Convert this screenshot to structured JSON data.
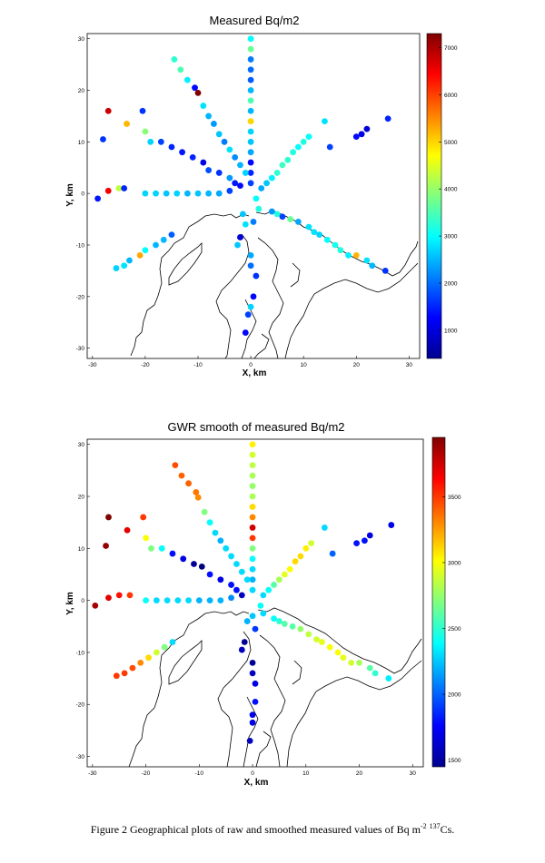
{
  "caption": {
    "prefix": "Figure 2 Geographical plots of raw and smoothed measured values of Bq m",
    "sup1": "-2",
    "mid": " ",
    "sup2": "137",
    "suffix": "Cs."
  },
  "chart_data": [
    {
      "type": "scatter",
      "title": "Measured Bq/m2",
      "xlabel": "X, km",
      "ylabel": "Y, km",
      "xlim": [
        -31,
        32
      ],
      "ylim": [
        -32,
        31
      ],
      "xticks": [
        -30,
        -20,
        -10,
        0,
        10,
        20,
        30
      ],
      "yticks": [
        -30,
        -20,
        -10,
        0,
        10,
        20,
        30
      ],
      "colorbar": {
        "min": 400,
        "max": 7300,
        "ticks": [
          1000,
          2000,
          3000,
          4000,
          5000,
          6000,
          7000
        ]
      },
      "points": [
        {
          "x": 0,
          "y": 30,
          "v": 3000
        },
        {
          "x": 0,
          "y": 28,
          "v": 3700
        },
        {
          "x": 0,
          "y": 26,
          "v": 2100
        },
        {
          "x": 0,
          "y": 24,
          "v": 2000
        },
        {
          "x": 0,
          "y": 22,
          "v": 1900
        },
        {
          "x": 0,
          "y": 20,
          "v": 2500
        },
        {
          "x": 0,
          "y": 18,
          "v": 3500
        },
        {
          "x": 0,
          "y": 16,
          "v": 2500
        },
        {
          "x": 0,
          "y": 14,
          "v": 5000
        },
        {
          "x": 0,
          "y": 12,
          "v": 2700
        },
        {
          "x": 0,
          "y": 10,
          "v": 2600
        },
        {
          "x": 0,
          "y": 8,
          "v": 2400
        },
        {
          "x": 0,
          "y": 6,
          "v": 1300
        },
        {
          "x": 0,
          "y": 4,
          "v": 1500
        },
        {
          "x": 0,
          "y": 2,
          "v": 1700
        },
        {
          "x": -14.5,
          "y": 26,
          "v": 3300
        },
        {
          "x": -13.3,
          "y": 24,
          "v": 3500
        },
        {
          "x": -12,
          "y": 22,
          "v": 2900
        },
        {
          "x": -10.6,
          "y": 20.5,
          "v": 1300
        },
        {
          "x": -10,
          "y": 19.5,
          "v": 7300
        },
        {
          "x": -9,
          "y": 17,
          "v": 2800
        },
        {
          "x": -8,
          "y": 15,
          "v": 2500
        },
        {
          "x": -7,
          "y": 13.5,
          "v": 2300
        },
        {
          "x": -6,
          "y": 11.5,
          "v": 2600
        },
        {
          "x": -5,
          "y": 10,
          "v": 2100
        },
        {
          "x": -4,
          "y": 8.5,
          "v": 2800
        },
        {
          "x": -3,
          "y": 7,
          "v": 2200
        },
        {
          "x": -2,
          "y": 5.5,
          "v": 2500
        },
        {
          "x": -1,
          "y": 4,
          "v": 2700
        },
        {
          "x": -27,
          "y": 16,
          "v": 6800
        },
        {
          "x": -23.5,
          "y": 13.5,
          "v": 5200
        },
        {
          "x": -20.5,
          "y": 16,
          "v": 1600
        },
        {
          "x": -28,
          "y": 10.5,
          "v": 1600
        },
        {
          "x": -20,
          "y": 12,
          "v": 3900
        },
        {
          "x": -19,
          "y": 10,
          "v": 2700
        },
        {
          "x": -17,
          "y": 10,
          "v": 1700
        },
        {
          "x": -15,
          "y": 9,
          "v": 1500
        },
        {
          "x": -13,
          "y": 8,
          "v": 1400
        },
        {
          "x": -11,
          "y": 7,
          "v": 1500
        },
        {
          "x": -9,
          "y": 6,
          "v": 1100
        },
        {
          "x": -8,
          "y": 4.5,
          "v": 1800
        },
        {
          "x": -6,
          "y": 4,
          "v": 1600
        },
        {
          "x": -4,
          "y": 3,
          "v": 2300
        },
        {
          "x": -3,
          "y": 2,
          "v": 1400
        },
        {
          "x": -2,
          "y": 1.5,
          "v": 1300
        },
        {
          "x": -29,
          "y": -1,
          "v": 1400
        },
        {
          "x": -27,
          "y": 0.5,
          "v": 6500
        },
        {
          "x": -25,
          "y": 1,
          "v": 4300
        },
        {
          "x": -24,
          "y": 1,
          "v": 1500
        },
        {
          "x": -20,
          "y": 0,
          "v": 2700
        },
        {
          "x": -18,
          "y": 0,
          "v": 2700
        },
        {
          "x": -16,
          "y": 0,
          "v": 2600
        },
        {
          "x": -14,
          "y": 0,
          "v": 2700
        },
        {
          "x": -12,
          "y": 0,
          "v": 2500
        },
        {
          "x": -10,
          "y": 0,
          "v": 2600
        },
        {
          "x": -8,
          "y": 0,
          "v": 2500
        },
        {
          "x": -6,
          "y": 0,
          "v": 2400
        },
        {
          "x": -4,
          "y": 0.5,
          "v": 1700
        },
        {
          "x": -25.5,
          "y": -14.5,
          "v": 2700
        },
        {
          "x": -24,
          "y": -14,
          "v": 2800
        },
        {
          "x": -23,
          "y": -13,
          "v": 2500
        },
        {
          "x": -21,
          "y": -12,
          "v": 5300
        },
        {
          "x": -20,
          "y": -11,
          "v": 3000
        },
        {
          "x": -18,
          "y": -10,
          "v": 2500
        },
        {
          "x": -16.5,
          "y": -9,
          "v": 2500
        },
        {
          "x": -15,
          "y": -8,
          "v": 1900
        },
        {
          "x": 14,
          "y": 14,
          "v": 2800
        },
        {
          "x": 11,
          "y": 11,
          "v": 3000
        },
        {
          "x": 10,
          "y": 10,
          "v": 3200
        },
        {
          "x": 9,
          "y": 9,
          "v": 3000
        },
        {
          "x": 8,
          "y": 8,
          "v": 3200
        },
        {
          "x": 7,
          "y": 6.5,
          "v": 3300
        },
        {
          "x": 6,
          "y": 5.5,
          "v": 3400
        },
        {
          "x": 5,
          "y": 4,
          "v": 3300
        },
        {
          "x": 4,
          "y": 3,
          "v": 2900
        },
        {
          "x": 3,
          "y": 2,
          "v": 2600
        },
        {
          "x": 2,
          "y": 1,
          "v": 2400
        },
        {
          "x": 26,
          "y": 14.5,
          "v": 1500
        },
        {
          "x": 22,
          "y": 12.5,
          "v": 1000
        },
        {
          "x": 21,
          "y": 11.5,
          "v": 1100
        },
        {
          "x": 20,
          "y": 11,
          "v": 1300
        },
        {
          "x": 15,
          "y": 9,
          "v": 1700
        },
        {
          "x": 1,
          "y": -1,
          "v": 3000
        },
        {
          "x": 1.5,
          "y": -3,
          "v": 3200
        },
        {
          "x": 4,
          "y": -3.5,
          "v": 2300
        },
        {
          "x": 5,
          "y": -4,
          "v": 3200
        },
        {
          "x": 6,
          "y": -4.5,
          "v": 1700
        },
        {
          "x": 7.5,
          "y": -5,
          "v": 3700
        },
        {
          "x": 9,
          "y": -5.5,
          "v": 2400
        },
        {
          "x": 11,
          "y": -6.5,
          "v": 2800
        },
        {
          "x": 12,
          "y": -7.5,
          "v": 2800
        },
        {
          "x": 13,
          "y": -8,
          "v": 2700
        },
        {
          "x": 14.5,
          "y": -9,
          "v": 3000
        },
        {
          "x": 16,
          "y": -10,
          "v": 3100
        },
        {
          "x": 17,
          "y": -11,
          "v": 3200
        },
        {
          "x": 18.5,
          "y": -12,
          "v": 2900
        },
        {
          "x": 20,
          "y": -12,
          "v": 5200
        },
        {
          "x": 22,
          "y": -13,
          "v": 2800
        },
        {
          "x": 23,
          "y": -14,
          "v": 2500
        },
        {
          "x": 25.5,
          "y": -15,
          "v": 1600
        },
        {
          "x": -1.5,
          "y": -4,
          "v": 2600
        },
        {
          "x": -1,
          "y": -6,
          "v": 2800
        },
        {
          "x": 0.5,
          "y": -5.5,
          "v": 2100
        },
        {
          "x": -2,
          "y": -8.5,
          "v": 1000
        },
        {
          "x": -2.5,
          "y": -10,
          "v": 2600
        },
        {
          "x": 0,
          "y": -12,
          "v": 2400
        },
        {
          "x": 0,
          "y": -14,
          "v": 2000
        },
        {
          "x": 1,
          "y": -16,
          "v": 1600
        },
        {
          "x": 0.5,
          "y": -20,
          "v": 1300
        },
        {
          "x": 0,
          "y": -22,
          "v": 2700
        },
        {
          "x": -0.5,
          "y": -23.5,
          "v": 1700
        },
        {
          "x": -1,
          "y": -27,
          "v": 1300
        }
      ]
    },
    {
      "type": "scatter",
      "title": "GWR smooth of measured Bq/m2",
      "xlabel": "X, km",
      "ylabel": "Y, km",
      "xlim": [
        -31,
        32
      ],
      "ylim": [
        -32,
        31
      ],
      "xticks": [
        -30,
        -20,
        -10,
        0,
        10,
        20,
        30
      ],
      "yticks": [
        -30,
        -20,
        -10,
        0,
        10,
        20,
        30
      ],
      "colorbar": {
        "min": 1450,
        "max": 3950,
        "ticks": [
          1500,
          2000,
          2500,
          3000,
          3500
        ]
      },
      "points": [
        {
          "x": 0,
          "y": 30,
          "v": 3050
        },
        {
          "x": 0,
          "y": 28,
          "v": 2900
        },
        {
          "x": 0,
          "y": 26,
          "v": 2850
        },
        {
          "x": 0,
          "y": 24,
          "v": 2800
        },
        {
          "x": 0,
          "y": 22,
          "v": 2750
        },
        {
          "x": 0,
          "y": 20,
          "v": 2800
        },
        {
          "x": 0,
          "y": 18,
          "v": 3100
        },
        {
          "x": 0,
          "y": 16,
          "v": 3300
        },
        {
          "x": 0,
          "y": 14,
          "v": 3750
        },
        {
          "x": 0,
          "y": 12,
          "v": 3500
        },
        {
          "x": 0,
          "y": 10,
          "v": 2700
        },
        {
          "x": 0,
          "y": 8,
          "v": 2400
        },
        {
          "x": 0,
          "y": 6,
          "v": 2300
        },
        {
          "x": 0,
          "y": 4,
          "v": 2200
        },
        {
          "x": 0,
          "y": 2,
          "v": 2300
        },
        {
          "x": -14.5,
          "y": 26,
          "v": 3450
        },
        {
          "x": -13.3,
          "y": 24,
          "v": 3400
        },
        {
          "x": -12,
          "y": 22.5,
          "v": 3400
        },
        {
          "x": -10.6,
          "y": 20.8,
          "v": 3350
        },
        {
          "x": -10.2,
          "y": 19.8,
          "v": 3300
        },
        {
          "x": -9,
          "y": 17,
          "v": 2700
        },
        {
          "x": -8,
          "y": 15,
          "v": 2400
        },
        {
          "x": -7,
          "y": 13,
          "v": 2300
        },
        {
          "x": -6,
          "y": 11.5,
          "v": 2200
        },
        {
          "x": -5,
          "y": 10,
          "v": 2300
        },
        {
          "x": -4,
          "y": 8.5,
          "v": 2300
        },
        {
          "x": -3,
          "y": 7,
          "v": 2300
        },
        {
          "x": -2,
          "y": 5.5,
          "v": 2300
        },
        {
          "x": -1,
          "y": 4,
          "v": 2300
        },
        {
          "x": -27,
          "y": 16,
          "v": 3950
        },
        {
          "x": -23.5,
          "y": 13.5,
          "v": 3700
        },
        {
          "x": -20.5,
          "y": 16,
          "v": 3500
        },
        {
          "x": -27.5,
          "y": 10.5,
          "v": 3900
        },
        {
          "x": -20,
          "y": 12,
          "v": 3000
        },
        {
          "x": -19,
          "y": 10,
          "v": 2700
        },
        {
          "x": -17,
          "y": 10,
          "v": 2400
        },
        {
          "x": -15,
          "y": 9,
          "v": 1800
        },
        {
          "x": -13,
          "y": 8,
          "v": 1700
        },
        {
          "x": -11,
          "y": 7,
          "v": 1500
        },
        {
          "x": -9.5,
          "y": 6.5,
          "v": 1450
        },
        {
          "x": -8,
          "y": 5,
          "v": 1800
        },
        {
          "x": -6,
          "y": 4,
          "v": 1700
        },
        {
          "x": -4,
          "y": 3,
          "v": 1800
        },
        {
          "x": -3,
          "y": 2,
          "v": 1800
        },
        {
          "x": -2,
          "y": 1,
          "v": 1600
        },
        {
          "x": -29.5,
          "y": -1,
          "v": 3850
        },
        {
          "x": -27,
          "y": 0.5,
          "v": 3700
        },
        {
          "x": -25,
          "y": 1,
          "v": 3600
        },
        {
          "x": -23,
          "y": 1,
          "v": 3500
        },
        {
          "x": -20,
          "y": 0,
          "v": 2400
        },
        {
          "x": -18,
          "y": 0,
          "v": 2300
        },
        {
          "x": -16,
          "y": 0,
          "v": 2300
        },
        {
          "x": -14,
          "y": 0,
          "v": 2300
        },
        {
          "x": -12,
          "y": 0,
          "v": 2300
        },
        {
          "x": -10,
          "y": 0,
          "v": 2200
        },
        {
          "x": -8,
          "y": 0,
          "v": 2200
        },
        {
          "x": -6,
          "y": 0,
          "v": 2200
        },
        {
          "x": -4,
          "y": 0.5,
          "v": 2100
        },
        {
          "x": -25.5,
          "y": -14.5,
          "v": 3500
        },
        {
          "x": -24,
          "y": -14,
          "v": 3500
        },
        {
          "x": -22.5,
          "y": -13,
          "v": 3450
        },
        {
          "x": -21,
          "y": -12,
          "v": 3300
        },
        {
          "x": -19.5,
          "y": -11,
          "v": 3100
        },
        {
          "x": -18,
          "y": -10,
          "v": 2900
        },
        {
          "x": -16.5,
          "y": -9,
          "v": 2700
        },
        {
          "x": -15,
          "y": -8,
          "v": 2300
        },
        {
          "x": 13.5,
          "y": 14,
          "v": 2300
        },
        {
          "x": 11,
          "y": 11,
          "v": 2900
        },
        {
          "x": 10,
          "y": 10,
          "v": 3050
        },
        {
          "x": 9,
          "y": 8.5,
          "v": 3100
        },
        {
          "x": 8,
          "y": 7.5,
          "v": 3100
        },
        {
          "x": 7,
          "y": 6,
          "v": 3000
        },
        {
          "x": 6,
          "y": 5,
          "v": 2950
        },
        {
          "x": 5,
          "y": 4,
          "v": 2800
        },
        {
          "x": 4,
          "y": 3,
          "v": 2600
        },
        {
          "x": 3,
          "y": 2,
          "v": 2400
        },
        {
          "x": 2,
          "y": 1,
          "v": 2300
        },
        {
          "x": 26,
          "y": 14.5,
          "v": 1700
        },
        {
          "x": 22,
          "y": 12.5,
          "v": 1700
        },
        {
          "x": 21,
          "y": 11.5,
          "v": 1800
        },
        {
          "x": 19.5,
          "y": 11,
          "v": 1800
        },
        {
          "x": 15,
          "y": 9,
          "v": 2000
        },
        {
          "x": 1.5,
          "y": -1,
          "v": 2400
        },
        {
          "x": 2,
          "y": -2.5,
          "v": 2300
        },
        {
          "x": 4,
          "y": -3.5,
          "v": 2400
        },
        {
          "x": 5,
          "y": -4,
          "v": 2500
        },
        {
          "x": 6,
          "y": -4.5,
          "v": 2600
        },
        {
          "x": 7.5,
          "y": -5,
          "v": 2600
        },
        {
          "x": 9,
          "y": -5.5,
          "v": 2750
        },
        {
          "x": 10.5,
          "y": -6.5,
          "v": 2850
        },
        {
          "x": 12,
          "y": -7.5,
          "v": 2900
        },
        {
          "x": 13,
          "y": -8,
          "v": 2950
        },
        {
          "x": 14.5,
          "y": -9,
          "v": 3000
        },
        {
          "x": 16,
          "y": -10,
          "v": 3000
        },
        {
          "x": 17,
          "y": -11,
          "v": 2950
        },
        {
          "x": 18.5,
          "y": -12,
          "v": 2900
        },
        {
          "x": 20,
          "y": -12,
          "v": 2800
        },
        {
          "x": 22,
          "y": -13,
          "v": 2600
        },
        {
          "x": 23,
          "y": -14,
          "v": 2500
        },
        {
          "x": 25.5,
          "y": -15,
          "v": 2350
        },
        {
          "x": -1,
          "y": -4,
          "v": 2200
        },
        {
          "x": 0.5,
          "y": -5.5,
          "v": 1900
        },
        {
          "x": 0,
          "y": -3,
          "v": 2250
        },
        {
          "x": -1.5,
          "y": -8,
          "v": 1500
        },
        {
          "x": -2,
          "y": -9.5,
          "v": 1600
        },
        {
          "x": 0,
          "y": -12,
          "v": 1500
        },
        {
          "x": 0,
          "y": -14,
          "v": 1600
        },
        {
          "x": 0.5,
          "y": -16,
          "v": 1700
        },
        {
          "x": 0.5,
          "y": -19.5,
          "v": 1800
        },
        {
          "x": 0,
          "y": -22,
          "v": 1700
        },
        {
          "x": 0,
          "y": -23.5,
          "v": 1700
        },
        {
          "x": -0.5,
          "y": -27,
          "v": 1600
        }
      ]
    }
  ]
}
